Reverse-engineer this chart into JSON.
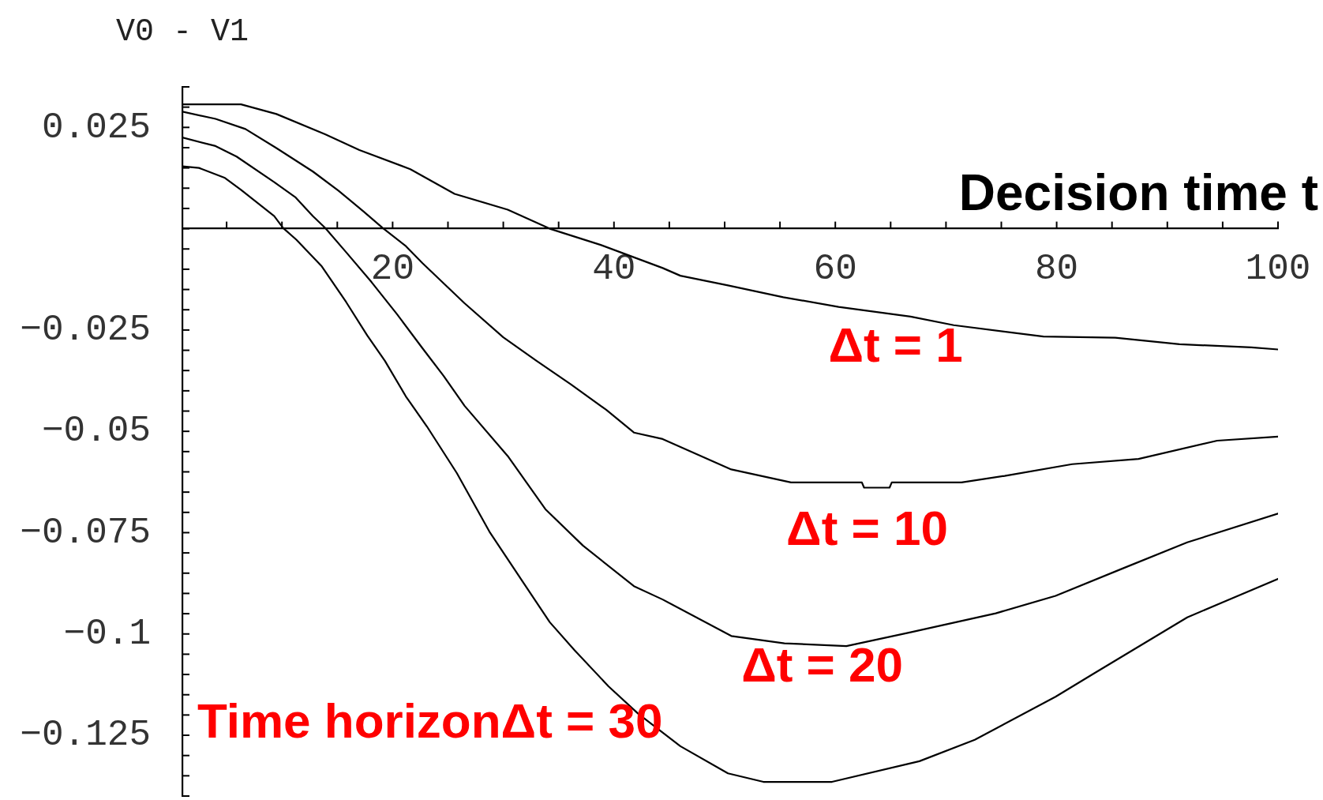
{
  "chart_data": {
    "type": "line",
    "xlabel": "Decision time t",
    "ylabel": "V0 - V1",
    "xlim": [
      1,
      100
    ],
    "ylim": [
      -0.14,
      0.035
    ],
    "xticks": [
      {
        "value": 5,
        "label": null
      },
      {
        "value": 10,
        "label": null
      },
      {
        "value": 15,
        "label": null
      },
      20,
      {
        "value": 25,
        "label": null
      },
      {
        "value": 30,
        "label": null
      },
      {
        "value": 35,
        "label": null
      },
      40,
      {
        "value": 45,
        "label": null
      },
      {
        "value": 50,
        "label": null
      },
      {
        "value": 55,
        "label": null
      },
      60,
      {
        "value": 65,
        "label": null
      },
      {
        "value": 70,
        "label": null
      },
      {
        "value": 75,
        "label": null
      },
      80,
      {
        "value": 85,
        "label": null
      },
      {
        "value": 90,
        "label": null
      },
      {
        "value": 95,
        "label": null
      },
      100
    ],
    "yticks": [
      {
        "value": -0.14,
        "label": null
      },
      {
        "value": -0.135,
        "label": null
      },
      {
        "value": -0.13,
        "label": null
      },
      -0.125,
      {
        "value": -0.12,
        "label": null
      },
      {
        "value": -0.115,
        "label": null
      },
      {
        "value": -0.11,
        "label": null
      },
      {
        "value": -0.105,
        "label": null
      },
      -0.1,
      {
        "value": -0.095,
        "label": null
      },
      {
        "value": -0.09,
        "label": null
      },
      {
        "value": -0.085,
        "label": null
      },
      {
        "value": -0.08,
        "label": null
      },
      -0.075,
      {
        "value": -0.07,
        "label": null
      },
      {
        "value": -0.065,
        "label": null
      },
      {
        "value": -0.06,
        "label": null
      },
      {
        "value": -0.055,
        "label": null
      },
      -0.05,
      {
        "value": -0.045,
        "label": null
      },
      {
        "value": -0.04,
        "label": null
      },
      {
        "value": -0.035,
        "label": null
      },
      {
        "value": -0.03,
        "label": null
      },
      -0.025,
      {
        "value": -0.02,
        "label": null
      },
      {
        "value": -0.015,
        "label": null
      },
      {
        "value": -0.01,
        "label": null
      },
      {
        "value": -0.005,
        "label": null
      },
      {
        "value": 0,
        "label": null
      },
      {
        "value": 0.005,
        "label": null
      },
      {
        "value": 0.01,
        "label": null
      },
      {
        "value": 0.015,
        "label": null
      },
      {
        "value": 0.02,
        "label": null
      },
      0.025,
      {
        "value": 0.03,
        "label": null
      },
      {
        "value": 0.035,
        "label": null
      }
    ],
    "marker": "none",
    "line_style": "solid",
    "series": [
      {
        "name": "Δt = 1",
        "color": "#000000",
        "x": [
          1,
          6.3,
          9.5,
          13.9,
          17.0,
          21.6,
          25.6,
          30.4,
          34.2,
          38.8,
          44.4,
          46.0,
          50.3,
          55.3,
          60.3,
          66.8,
          70.7,
          78.8,
          85.3,
          91.1,
          97.6,
          100
        ],
        "values": [
          0.0307,
          0.0307,
          0.0283,
          0.0233,
          0.0194,
          0.0147,
          0.0086,
          0.0047,
          0.0,
          -0.004,
          -0.0097,
          -0.0116,
          -0.014,
          -0.0169,
          -0.0193,
          -0.0217,
          -0.0238,
          -0.0266,
          -0.0269,
          -0.0285,
          -0.0293,
          -0.0298
        ]
      },
      {
        "name": "Δt = 10",
        "color": "#000000",
        "x": [
          1,
          4.0,
          6.7,
          9.5,
          12.8,
          15.1,
          17.4,
          19.1,
          21.2,
          22.7,
          26.5,
          30.0,
          33.0,
          36.1,
          39.3,
          41.8,
          44.4,
          50.6,
          56.0,
          62.4,
          62.6,
          64.9,
          65.1,
          71.4,
          75.3,
          81.4,
          87.4,
          94.5,
          100
        ],
        "values": [
          0.0289,
          0.0271,
          0.0246,
          0.0199,
          0.0141,
          0.0094,
          0.0042,
          0.0002,
          -0.0043,
          -0.0085,
          -0.0184,
          -0.0268,
          -0.0326,
          -0.0384,
          -0.0447,
          -0.0503,
          -0.0519,
          -0.0594,
          -0.0626,
          -0.0626,
          -0.0639,
          -0.0639,
          -0.0626,
          -0.0626,
          -0.061,
          -0.0581,
          -0.0568,
          -0.0523,
          -0.0513
        ]
      },
      {
        "name": "Δt = 20",
        "color": "#000000",
        "x": [
          1,
          4.0,
          5.9,
          9.3,
          11.2,
          12.8,
          13.9,
          15.8,
          18.1,
          20.4,
          22.7,
          24.6,
          26.5,
          30.4,
          33.8,
          37.2,
          41.8,
          44.4,
          50.6,
          55.4,
          61.0,
          66.8,
          74.5,
          79.9,
          86.0,
          91.8,
          100
        ],
        "values": [
          0.0225,
          0.0204,
          0.0178,
          0.0115,
          0.0078,
          0.0031,
          0.0002,
          -0.0058,
          -0.0132,
          -0.0211,
          -0.0295,
          -0.0363,
          -0.0437,
          -0.0561,
          -0.0692,
          -0.0782,
          -0.0882,
          -0.0915,
          -0.1005,
          -0.1023,
          -0.103,
          -0.0996,
          -0.0949,
          -0.0906,
          -0.0838,
          -0.0774,
          -0.0703
        ]
      },
      {
        "name": "Time horizonΔt = 30",
        "color": "#000000",
        "x": [
          1,
          2.5,
          4.8,
          6.3,
          9.3,
          10.1,
          11.3,
          13.6,
          15.8,
          17.7,
          19.3,
          21.2,
          23.1,
          25.8,
          28.8,
          31.9,
          34.2,
          36.4,
          39.5,
          42.2,
          46.0,
          50.3,
          53.5,
          59.7,
          67.6,
          72.6,
          79.9,
          83.4,
          91.8,
          100
        ],
        "values": [
          0.0154,
          0.015,
          0.0126,
          0.0096,
          0.0031,
          0.0002,
          -0.0027,
          -0.0093,
          -0.0181,
          -0.0263,
          -0.0326,
          -0.0414,
          -0.0488,
          -0.0603,
          -0.075,
          -0.0877,
          -0.0971,
          -0.1039,
          -0.1129,
          -0.1197,
          -0.1277,
          -0.1344,
          -0.1365,
          -0.1365,
          -0.1314,
          -0.1261,
          -0.1155,
          -0.1097,
          -0.0959,
          -0.0864
        ]
      }
    ]
  }
}
